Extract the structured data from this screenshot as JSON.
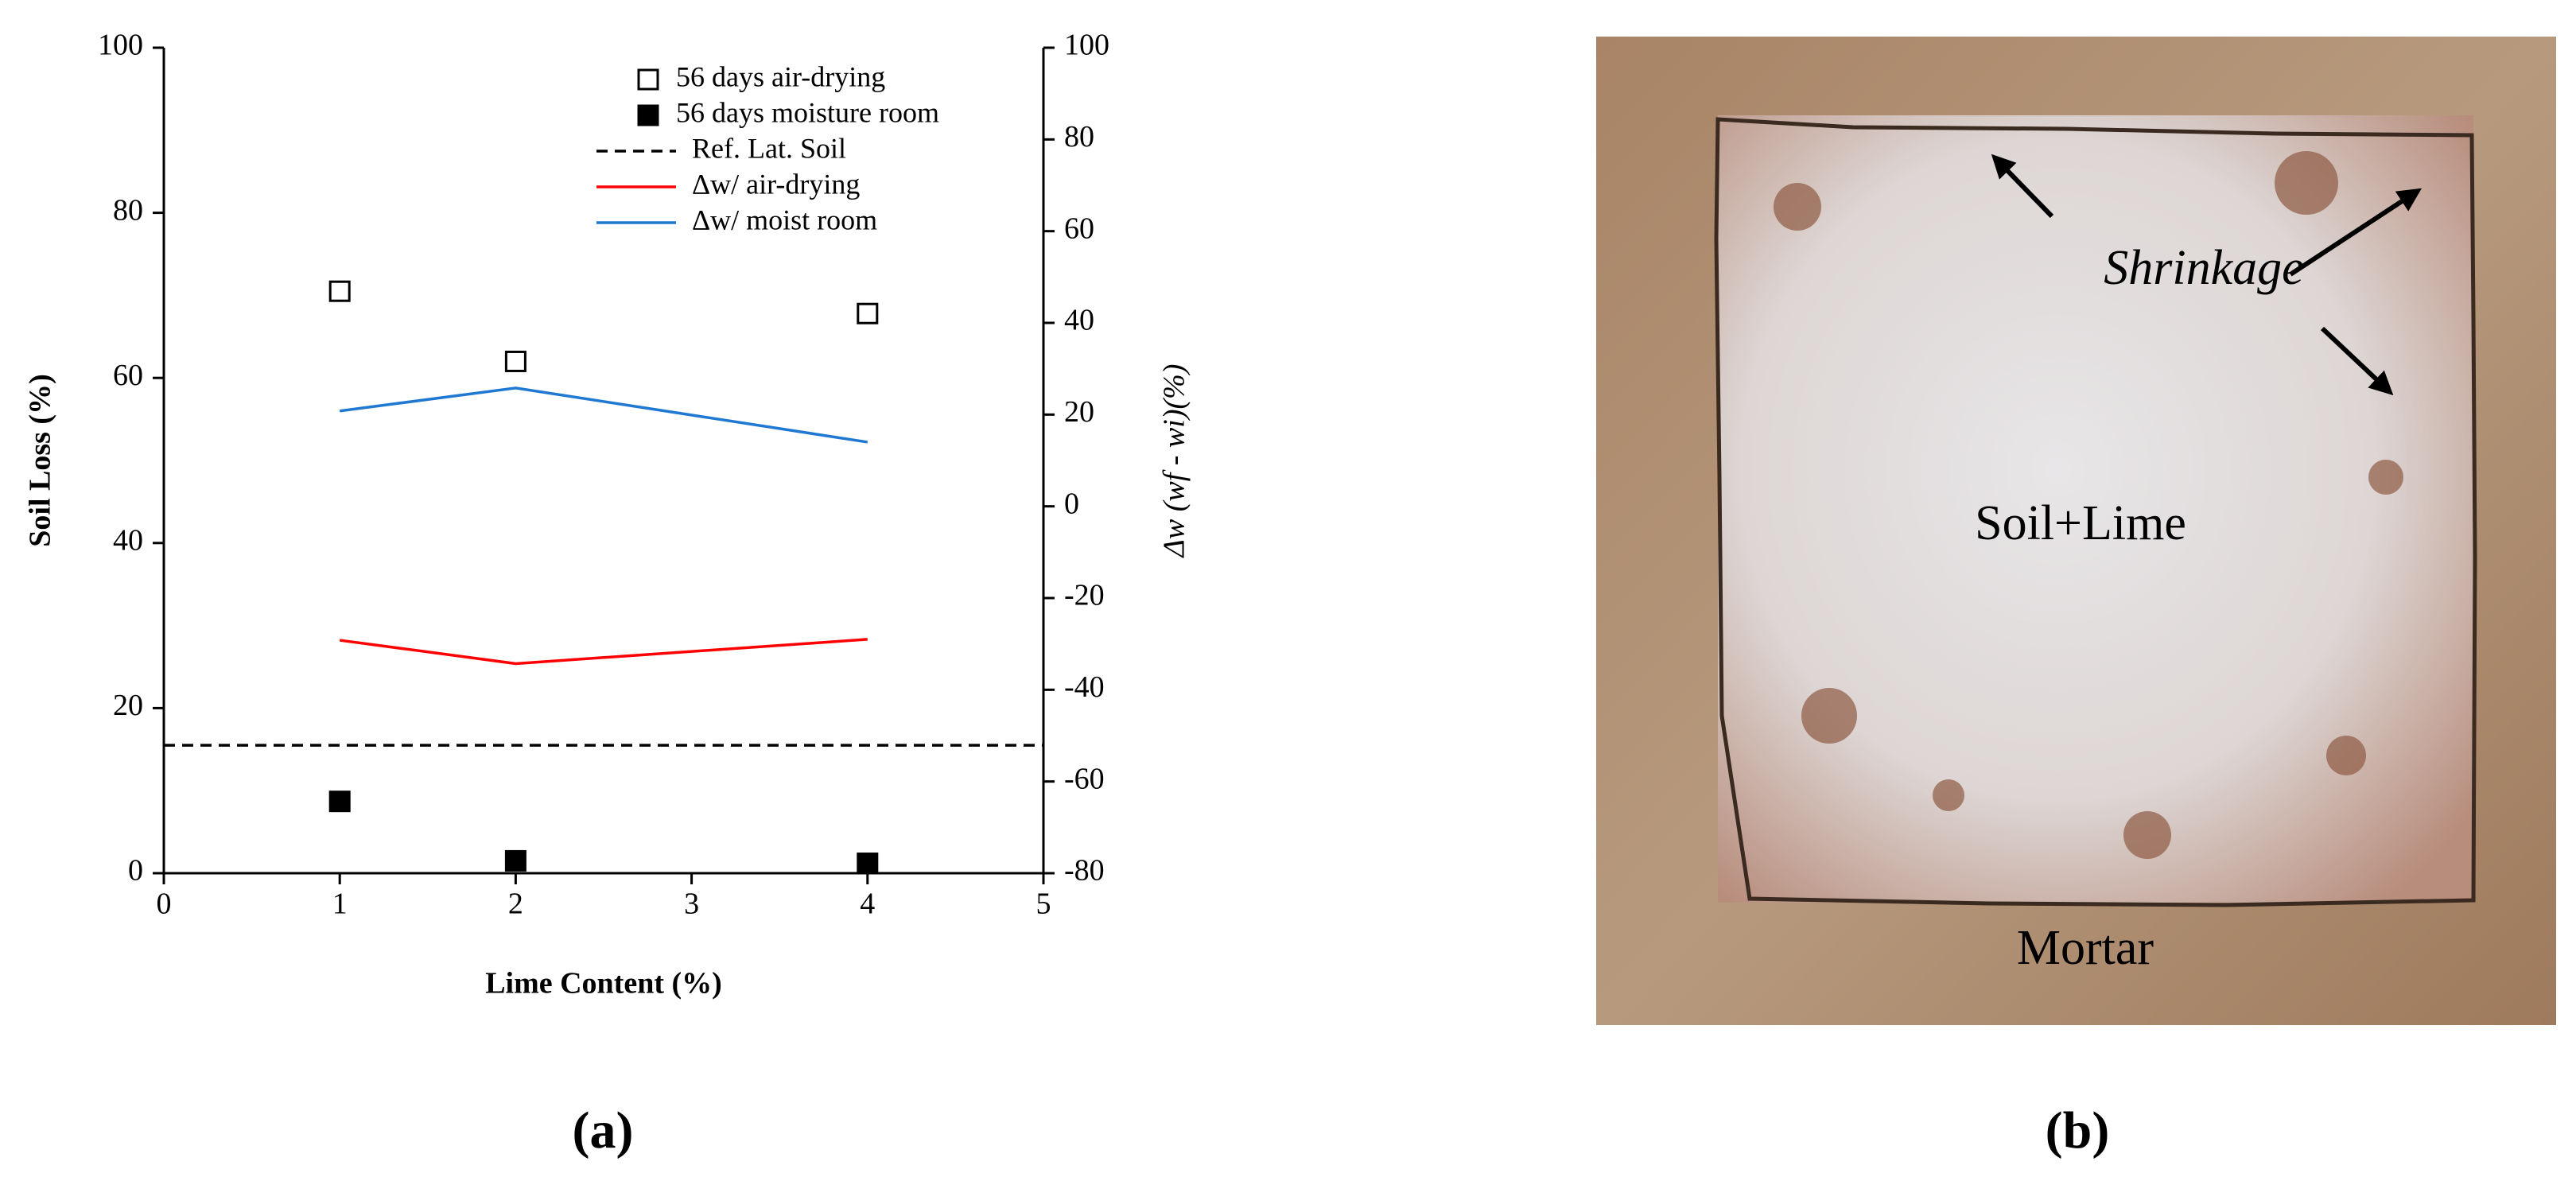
{
  "chart_data": {
    "type": "combo",
    "caption": "(a)",
    "xlabel": "Lime Content (%)",
    "ylabel": "Soil Loss (%)",
    "y2label": "Δw (wf - wi)(%)",
    "x": [
      1,
      2,
      4
    ],
    "xlim": [
      0,
      5
    ],
    "xticks": [
      0,
      1,
      2,
      3,
      4,
      5
    ],
    "ylim": [
      0,
      100
    ],
    "yticks": [
      0,
      20,
      40,
      60,
      80,
      100
    ],
    "y2lim": [
      -80,
      100
    ],
    "y2ticks": [
      -80,
      -60,
      -40,
      -20,
      0,
      20,
      40,
      60,
      80,
      100
    ],
    "series": [
      {
        "name": "56 days air-drying",
        "style": "scatter",
        "marker": "open-square",
        "color": "#000000",
        "values": [
          70.5,
          62,
          67.8
        ]
      },
      {
        "name": "56 days moisture room",
        "style": "scatter",
        "marker": "square",
        "color": "#000000",
        "values": [
          8.7,
          1.5,
          1.2
        ]
      },
      {
        "name": "Ref. Lat. Soil",
        "style": "line",
        "dash": true,
        "color": "#000000",
        "x": [
          0,
          5
        ],
        "values": [
          15.5,
          15.5
        ]
      },
      {
        "name": "Δw/ air-drying",
        "style": "line",
        "axis": "y2",
        "color": "#ff0000",
        "values": [
          -29.2,
          -34.3,
          -29
        ]
      },
      {
        "name": "Δw/ moist room",
        "style": "line",
        "axis": "y2",
        "color": "#1f78d1",
        "values": [
          20.8,
          25.8,
          14
        ]
      }
    ]
  },
  "photo": {
    "caption": "(b)",
    "labels": {
      "shrinkage": "Shrinkage",
      "center": "Soil+Lime",
      "border": "Mortar"
    }
  }
}
